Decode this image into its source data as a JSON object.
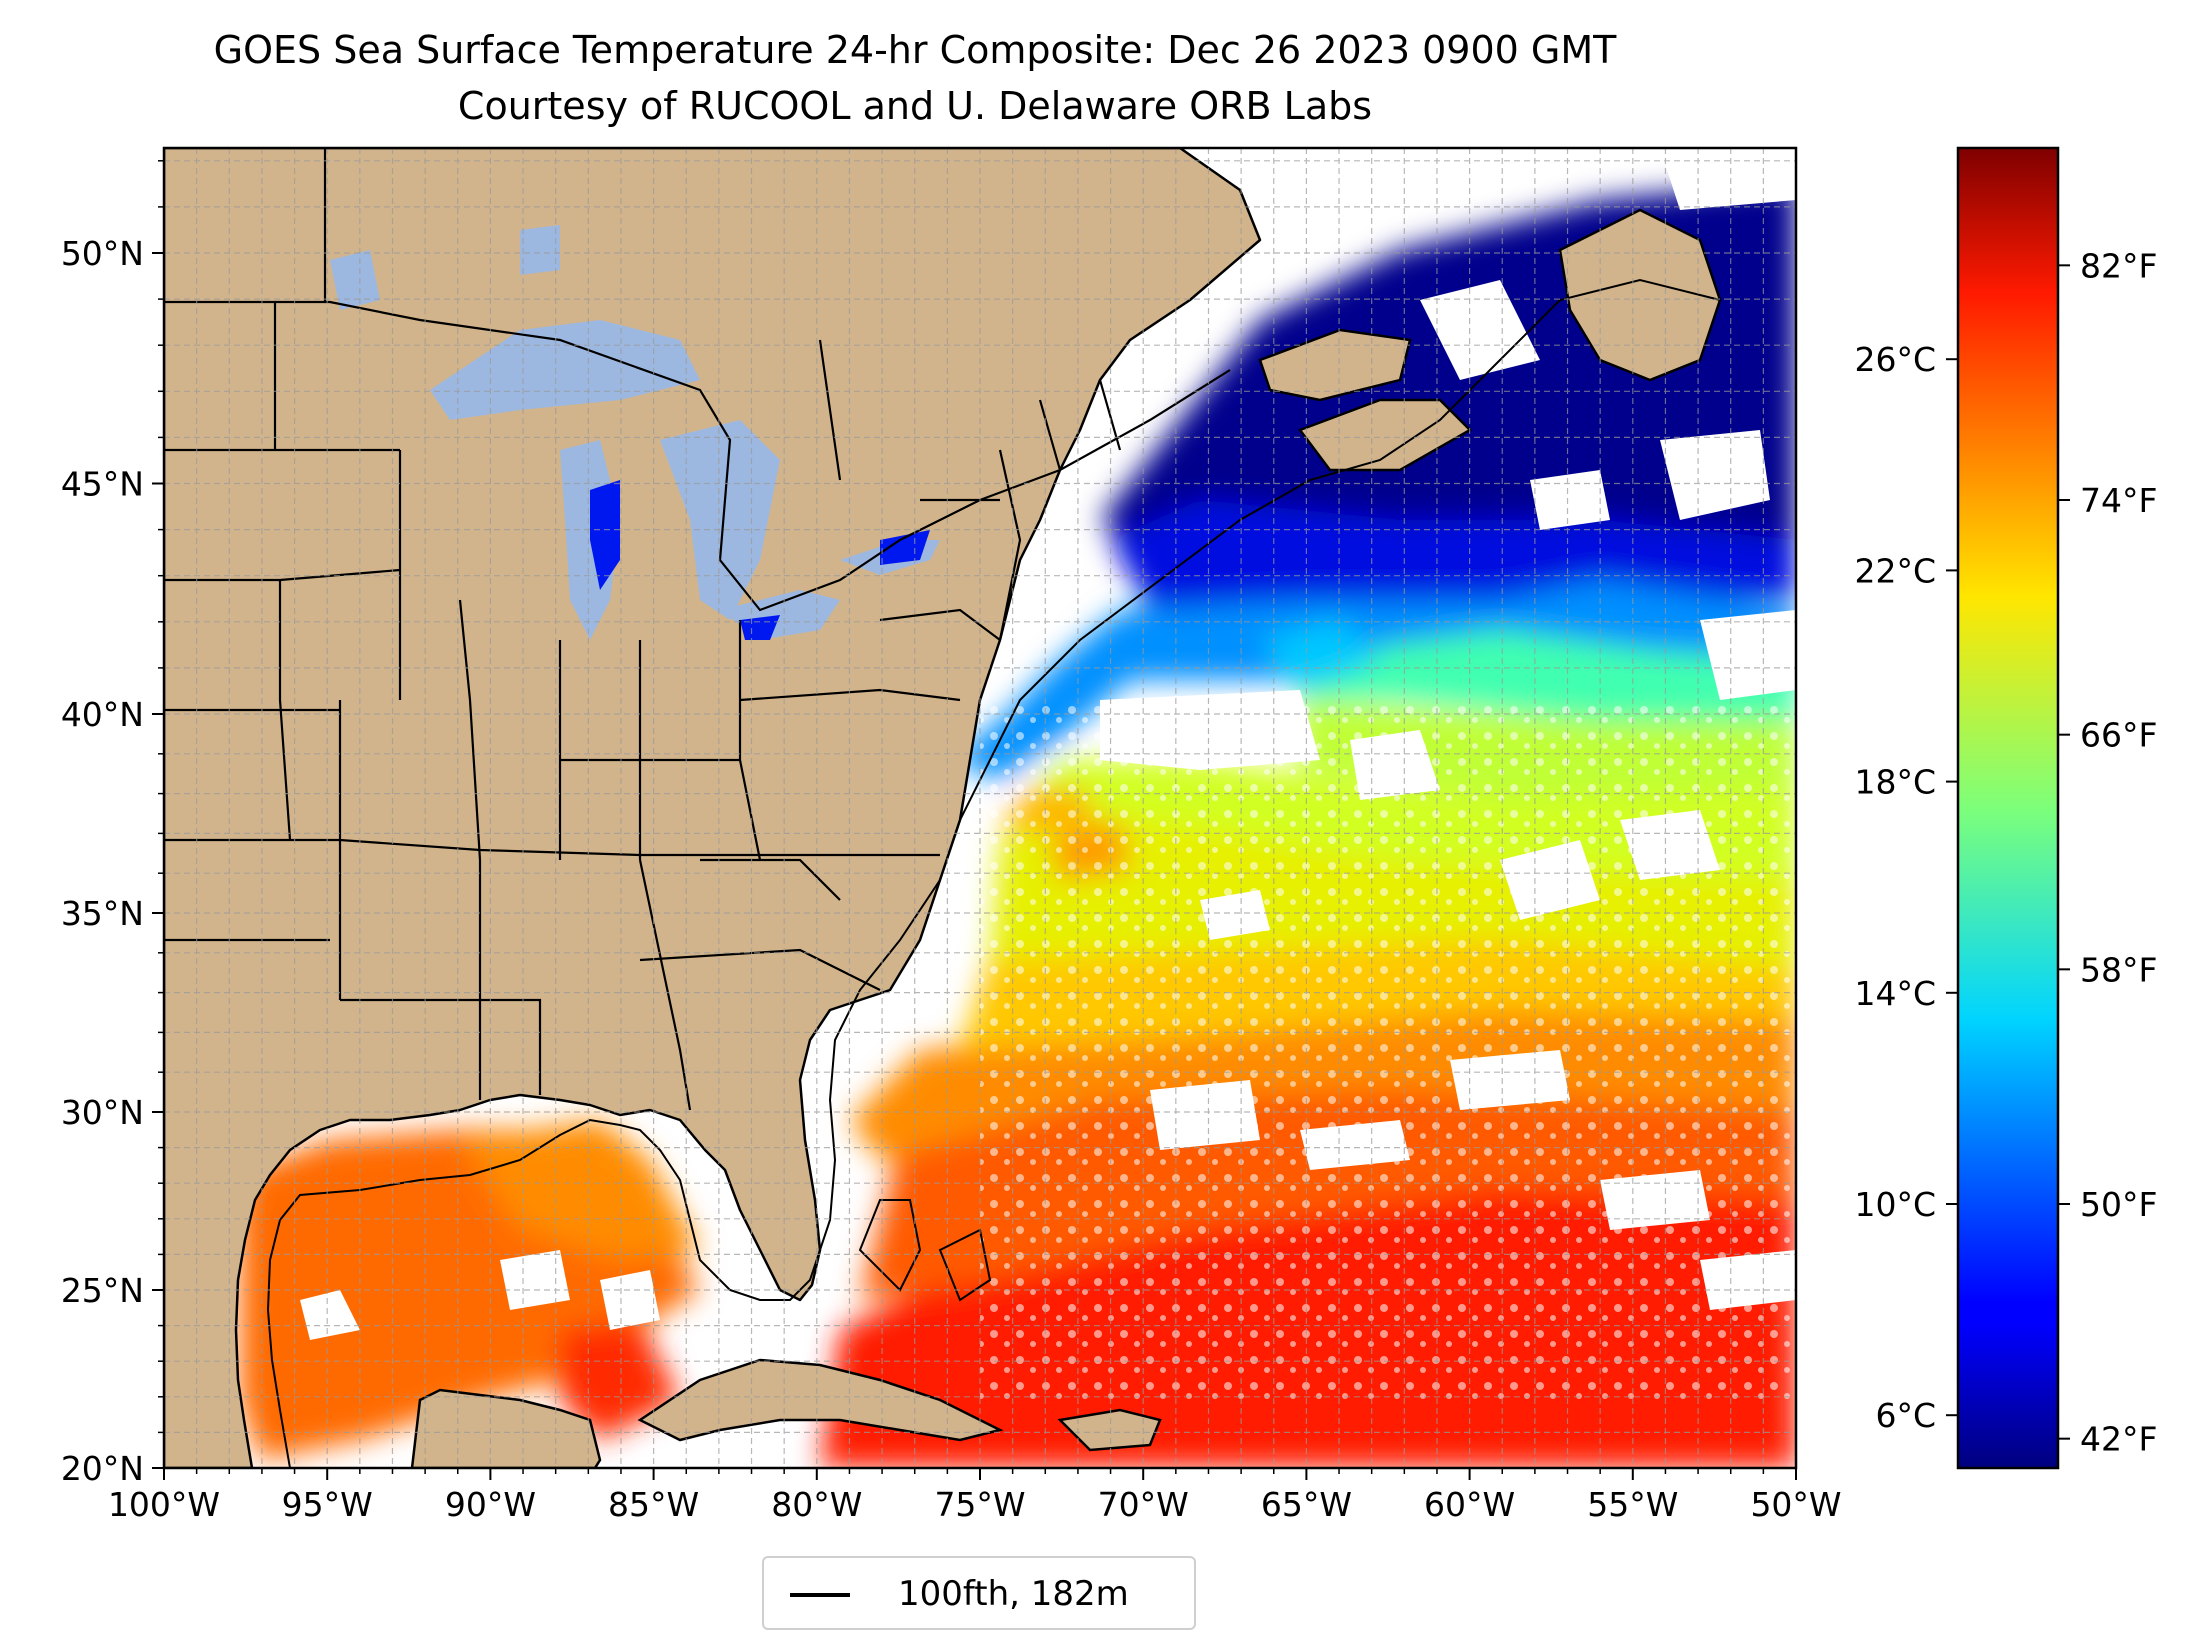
{
  "title_line1": "GOES Sea Surface Temperature 24-hr Composite: Dec 26 2023 0900 GMT",
  "title_line2": "Courtesy of RUCOOL and U. Delaware ORB Labs",
  "map": {
    "lon_ticks": [
      "100°W",
      "95°W",
      "90°W",
      "85°W",
      "80°W",
      "75°W",
      "70°W",
      "65°W",
      "60°W",
      "55°W",
      "50°W"
    ],
    "lat_ticks": [
      "20°N",
      "25°N",
      "30°N",
      "35°N",
      "40°N",
      "45°N",
      "50°N"
    ],
    "grid": true,
    "land_color": "#d2b48c",
    "lake_color": "#9db8e0"
  },
  "colorbar": {
    "colormap": "jet",
    "celsius_ticks": [
      "6°C",
      "10°C",
      "14°C",
      "18°C",
      "22°C",
      "26°C"
    ],
    "fahrenheit_ticks": [
      "42°F",
      "50°F",
      "58°F",
      "66°F",
      "74°F",
      "82°F"
    ]
  },
  "legend": {
    "label": "100fth, 182m"
  }
}
